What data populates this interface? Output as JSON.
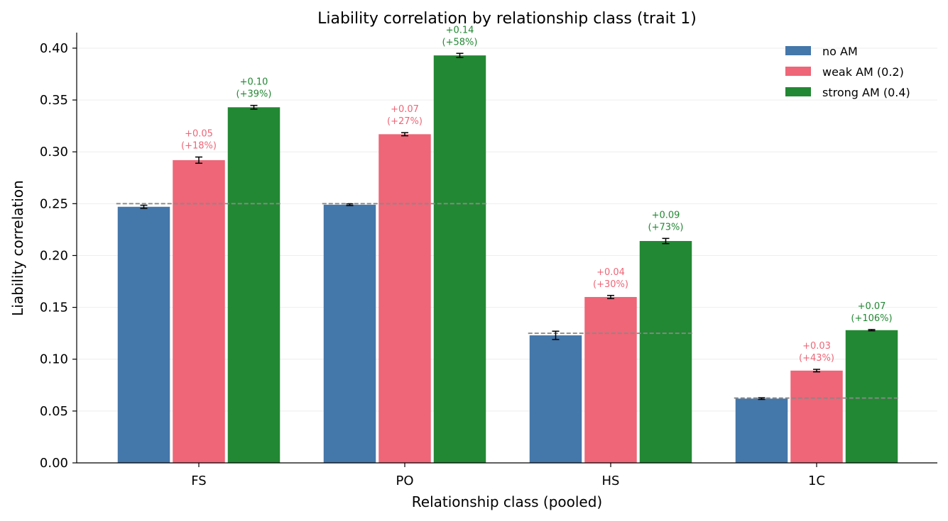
{
  "chart_data": {
    "type": "bar",
    "title": "Liability correlation by relationship class (trait 1)",
    "xlabel": "Relationship class (pooled)",
    "ylabel": "Liability correlation",
    "categories": [
      "FS",
      "PO",
      "HS",
      "1C"
    ],
    "ylim": [
      0,
      0.415
    ],
    "yticks": [
      0.0,
      0.05,
      0.1,
      0.15,
      0.2,
      0.25,
      0.3,
      0.35,
      0.4
    ],
    "ytick_labels": [
      "0.00",
      "0.05",
      "0.10",
      "0.15",
      "0.20",
      "0.25",
      "0.30",
      "0.35",
      "0.40"
    ],
    "grid": "horizontal",
    "legend_position": "top-right",
    "series": [
      {
        "name": "no AM",
        "color": "#4477aa",
        "values": [
          0.247,
          0.249,
          0.123,
          0.062
        ],
        "errors": [
          0.0015,
          0.0008,
          0.004,
          0.0008
        ],
        "annotations": [
          null,
          null,
          null,
          null
        ]
      },
      {
        "name": "weak AM (0.2)",
        "color": "#ee6677",
        "values": [
          0.292,
          0.317,
          0.16,
          0.089
        ],
        "errors": [
          0.003,
          0.0015,
          0.0015,
          0.0012
        ],
        "annotations": [
          [
            "+0.05",
            "(+18%)"
          ],
          [
            "+0.07",
            "(+27%)"
          ],
          [
            "+0.04",
            "(+30%)"
          ],
          [
            "+0.03",
            "(+43%)"
          ]
        ]
      },
      {
        "name": "strong AM (0.4)",
        "color": "#228833",
        "values": [
          0.343,
          0.393,
          0.214,
          0.128
        ],
        "errors": [
          0.0018,
          0.002,
          0.0025,
          0.0006
        ],
        "annotations": [
          [
            "+0.10",
            "(+39%)"
          ],
          [
            "+0.14",
            "(+58%)"
          ],
          [
            "+0.09",
            "(+73%)"
          ],
          [
            "+0.07",
            "(+106%)"
          ]
        ]
      }
    ],
    "reference_lines": [
      0.25,
      0.25,
      0.125,
      0.0625
    ],
    "reference_line_color": "#888888",
    "error_bar_color": "#000000"
  }
}
